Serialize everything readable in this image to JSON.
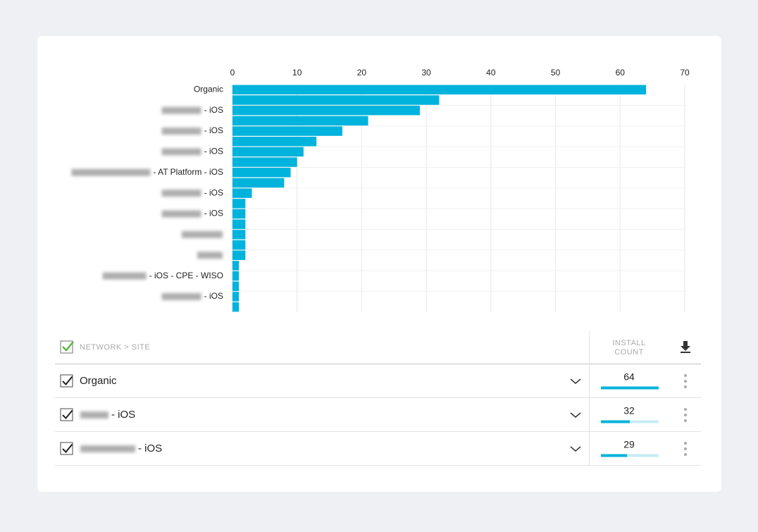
{
  "chart_data": {
    "type": "bar",
    "orientation": "horizontal",
    "color": "#00b3dc",
    "categories": [
      "Organic",
      null,
      "- iOS",
      null,
      "- iOS",
      null,
      "- iOS",
      null,
      "- AT Platform - iOS",
      null,
      "- iOS",
      null,
      "- iOS",
      null,
      null,
      null,
      null,
      null,
      "- iOS - CPE - WISO",
      null,
      "- iOS",
      null
    ],
    "values": [
      64,
      32,
      29,
      21,
      17,
      13,
      11,
      10,
      9,
      8,
      3,
      2,
      2,
      2,
      2,
      2,
      2,
      1,
      1,
      1,
      1,
      1
    ],
    "xlim": [
      0,
      70
    ],
    "xticks": [
      0,
      10,
      20,
      30,
      40,
      50,
      60,
      70
    ],
    "grid": true
  },
  "table": {
    "header": {
      "name": "NETWORK > SITE",
      "count_line1": "INSTALL",
      "count_line2": "COUNT"
    },
    "rows": [
      {
        "name": "Organic",
        "count": 64
      },
      {
        "name": "- iOS",
        "count": 32
      },
      {
        "name": "- iOS",
        "count": 29
      }
    ]
  }
}
